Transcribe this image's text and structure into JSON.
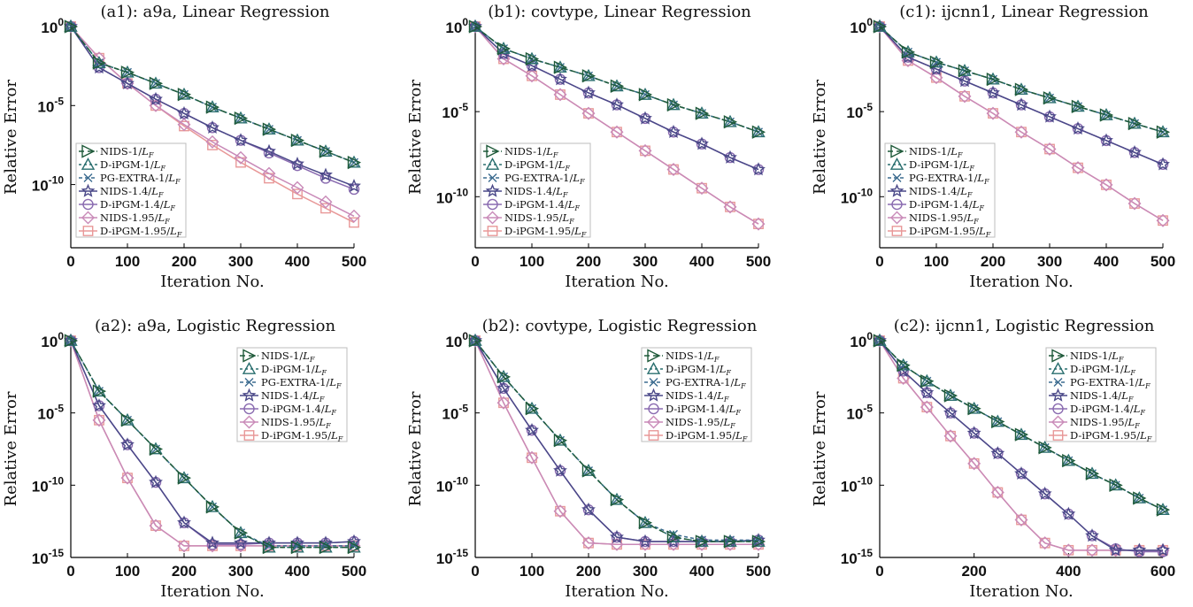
{
  "chart_data": [
    {
      "type": "line",
      "title": "(a1): a9a, Linear Regression",
      "xlabel": "Iteration No.",
      "ylabel": "Relative Error",
      "xlim": [
        0,
        500
      ],
      "xticks": [
        "0",
        "100",
        "200",
        "300",
        "400",
        "500"
      ],
      "ylim_log10": [
        -14,
        0
      ],
      "yticks": [
        {
          "base": "10",
          "exp": "0",
          "log": 0
        },
        {
          "base": "10",
          "exp": "-5",
          "log": -5
        },
        {
          "base": "10",
          "exp": "-10",
          "log": -10
        }
      ],
      "legend_position": "bottom-left",
      "x": [
        0,
        50,
        100,
        150,
        200,
        250,
        300,
        350,
        400,
        450,
        500
      ],
      "series": [
        {
          "name": "NIDS-1/L_F",
          "values": [
            0,
            -2.3,
            -2.9,
            -3.6,
            -4.3,
            -5.1,
            -5.8,
            -6.5,
            -7.2,
            -7.9,
            -8.6
          ]
        },
        {
          "name": "D-iPGM-1/L_F",
          "values": [
            0,
            -2.3,
            -2.9,
            -3.6,
            -4.3,
            -5.1,
            -5.8,
            -6.5,
            -7.2,
            -7.9,
            -8.6
          ]
        },
        {
          "name": "PG-EXTRA-1/L_F",
          "values": [
            0,
            -2.3,
            -2.9,
            -3.6,
            -4.3,
            -5.1,
            -5.8,
            -6.5,
            -7.2,
            -7.9,
            -8.6
          ]
        },
        {
          "name": "NIDS-1.4/L_F",
          "values": [
            0,
            -2.6,
            -3.6,
            -4.6,
            -5.5,
            -6.4,
            -7.2,
            -7.9,
            -8.7,
            -9.4,
            -10.1
          ]
        },
        {
          "name": "D-iPGM-1.4/L_F",
          "values": [
            0,
            -2.6,
            -3.6,
            -4.6,
            -5.5,
            -6.4,
            -7.2,
            -8.0,
            -8.8,
            -9.6,
            -10.3
          ]
        },
        {
          "name": "NIDS-1.95/L_F",
          "values": [
            0,
            -2.0,
            -3.6,
            -5.0,
            -6.2,
            -7.3,
            -8.3,
            -9.3,
            -10.2,
            -11.1,
            -12.0
          ]
        },
        {
          "name": "D-iPGM-1.95/L_F",
          "values": [
            0,
            -2.0,
            -3.6,
            -5.0,
            -6.3,
            -7.5,
            -8.6,
            -9.6,
            -10.6,
            -11.5,
            -12.4
          ]
        }
      ]
    },
    {
      "type": "line",
      "title": "(b1): covtype, Linear Regression",
      "xlabel": "Iteration No.",
      "ylabel": "Relative Error",
      "xlim": [
        0,
        500
      ],
      "xticks": [
        "0",
        "100",
        "200",
        "300",
        "400",
        "500"
      ],
      "ylim_log10": [
        -13,
        0
      ],
      "yticks": [
        {
          "base": "10",
          "exp": "0",
          "log": 0
        },
        {
          "base": "10",
          "exp": "-5",
          "log": -5
        },
        {
          "base": "10",
          "exp": "-10",
          "log": -10
        }
      ],
      "legend_position": "bottom-left",
      "x": [
        0,
        50,
        100,
        150,
        200,
        250,
        300,
        350,
        400,
        450,
        500
      ],
      "series": [
        {
          "name": "NIDS-1/L_F",
          "values": [
            0,
            -1.3,
            -1.9,
            -2.4,
            -2.9,
            -3.5,
            -4.0,
            -4.6,
            -5.1,
            -5.6,
            -6.2
          ]
        },
        {
          "name": "D-iPGM-1/L_F",
          "values": [
            0,
            -1.3,
            -1.9,
            -2.4,
            -2.9,
            -3.5,
            -4.0,
            -4.6,
            -5.1,
            -5.6,
            -6.2
          ]
        },
        {
          "name": "PG-EXTRA-1/L_F",
          "values": [
            0,
            -1.3,
            -1.9,
            -2.4,
            -2.9,
            -3.5,
            -4.0,
            -4.6,
            -5.1,
            -5.6,
            -6.2
          ]
        },
        {
          "name": "NIDS-1.4/L_F",
          "values": [
            0,
            -1.6,
            -2.3,
            -3.1,
            -3.9,
            -4.6,
            -5.4,
            -6.2,
            -6.9,
            -7.7,
            -8.4
          ]
        },
        {
          "name": "D-iPGM-1.4/L_F",
          "values": [
            0,
            -1.6,
            -2.3,
            -3.1,
            -3.9,
            -4.6,
            -5.4,
            -6.2,
            -6.9,
            -7.7,
            -8.4
          ]
        },
        {
          "name": "NIDS-1.95/L_F",
          "values": [
            0,
            -1.9,
            -2.9,
            -4.0,
            -5.1,
            -6.2,
            -7.3,
            -8.4,
            -9.5,
            -10.6,
            -11.6
          ]
        },
        {
          "name": "D-iPGM-1.95/L_F",
          "values": [
            0,
            -1.9,
            -2.9,
            -4.0,
            -5.1,
            -6.2,
            -7.3,
            -8.4,
            -9.5,
            -10.6,
            -11.6
          ]
        }
      ]
    },
    {
      "type": "line",
      "title": "(c1): ijcnn1, Linear Regression",
      "xlabel": "Iteration No.",
      "ylabel": "Relative Error",
      "xlim": [
        0,
        500
      ],
      "xticks": [
        "0",
        "100",
        "200",
        "300",
        "400",
        "500"
      ],
      "ylim_log10": [
        -13,
        0
      ],
      "yticks": [
        {
          "base": "10",
          "exp": "0",
          "log": 0
        },
        {
          "base": "10",
          "exp": "-5",
          "log": -5
        },
        {
          "base": "10",
          "exp": "-10",
          "log": -10
        }
      ],
      "legend_position": "bottom-left",
      "x": [
        0,
        50,
        100,
        150,
        200,
        250,
        300,
        350,
        400,
        450,
        500
      ],
      "series": [
        {
          "name": "NIDS-1/L_F",
          "values": [
            0,
            -1.5,
            -2.1,
            -2.6,
            -3.1,
            -3.7,
            -4.2,
            -4.7,
            -5.2,
            -5.7,
            -6.2
          ]
        },
        {
          "name": "D-iPGM-1/L_F",
          "values": [
            0,
            -1.5,
            -2.1,
            -2.6,
            -3.1,
            -3.7,
            -4.2,
            -4.7,
            -5.2,
            -5.7,
            -6.2
          ]
        },
        {
          "name": "PG-EXTRA-1/L_F",
          "values": [
            0,
            -1.5,
            -2.1,
            -2.6,
            -3.1,
            -3.7,
            -4.2,
            -4.7,
            -5.2,
            -5.7,
            -6.2
          ]
        },
        {
          "name": "NIDS-1.4/L_F",
          "values": [
            0,
            -1.8,
            -2.5,
            -3.2,
            -3.9,
            -4.6,
            -5.3,
            -6.0,
            -6.7,
            -7.4,
            -8.1
          ]
        },
        {
          "name": "D-iPGM-1.4/L_F",
          "values": [
            0,
            -1.8,
            -2.5,
            -3.2,
            -3.9,
            -4.6,
            -5.3,
            -6.0,
            -6.7,
            -7.4,
            -8.1
          ]
        },
        {
          "name": "NIDS-1.95/L_F",
          "values": [
            0,
            -2.0,
            -3.0,
            -4.1,
            -5.1,
            -6.2,
            -7.2,
            -8.3,
            -9.3,
            -10.4,
            -11.4
          ]
        },
        {
          "name": "D-iPGM-1.95/L_F",
          "values": [
            0,
            -2.0,
            -3.0,
            -4.1,
            -5.1,
            -6.2,
            -7.2,
            -8.3,
            -9.3,
            -10.4,
            -11.4
          ]
        }
      ]
    },
    {
      "type": "line",
      "title": "(a2): a9a, Logistic Regression",
      "xlabel": "Iteration No.",
      "ylabel": "Relative Error",
      "xlim": [
        0,
        500
      ],
      "xticks": [
        "0",
        "100",
        "200",
        "300",
        "400",
        "500"
      ],
      "ylim_log10": [
        -15,
        0
      ],
      "yticks": [
        {
          "base": "10",
          "exp": "0",
          "log": 0
        },
        {
          "base": "10",
          "exp": "-5",
          "log": -5
        },
        {
          "base": "10",
          "exp": "-10",
          "log": -10
        },
        {
          "base": "10",
          "exp": "-15",
          "log": -15
        }
      ],
      "legend_position": "top-right",
      "x": [
        0,
        50,
        100,
        150,
        200,
        250,
        300,
        350,
        400,
        450,
        500
      ],
      "series": [
        {
          "name": "NIDS-1/L_F",
          "values": [
            0,
            -3.5,
            -5.5,
            -7.5,
            -9.5,
            -11.5,
            -13.3,
            -14.3,
            -14.3,
            -14.3,
            -14.3
          ]
        },
        {
          "name": "D-iPGM-1/L_F",
          "values": [
            0,
            -3.5,
            -5.5,
            -7.5,
            -9.5,
            -11.5,
            -13.3,
            -14.3,
            -14.3,
            -14.3,
            -14.3
          ]
        },
        {
          "name": "PG-EXTRA-1/L_F",
          "values": [
            0,
            -3.5,
            -5.5,
            -7.5,
            -9.5,
            -11.5,
            -13.3,
            -14.2,
            -14.2,
            -14.2,
            -14.2
          ]
        },
        {
          "name": "NIDS-1.4/L_F",
          "values": [
            0,
            -4.5,
            -7.2,
            -9.8,
            -12.6,
            -14.0,
            -14.0,
            -14.0,
            -14.0,
            -14.0,
            -13.9
          ]
        },
        {
          "name": "D-iPGM-1.4/L_F",
          "values": [
            0,
            -4.5,
            -7.2,
            -9.8,
            -12.6,
            -14.1,
            -14.1,
            -14.0,
            -14.0,
            -14.0,
            -13.9
          ]
        },
        {
          "name": "NIDS-1.95/L_F",
          "values": [
            0,
            -5.5,
            -9.5,
            -12.8,
            -14.2,
            -14.2,
            -14.2,
            -14.2,
            -14.2,
            -14.2,
            -14.2
          ]
        },
        {
          "name": "D-iPGM-1.95/L_F",
          "values": [
            0,
            -5.5,
            -9.5,
            -12.8,
            -14.2,
            -14.2,
            -14.2,
            -14.2,
            -14.2,
            -14.2,
            -14.2
          ]
        }
      ]
    },
    {
      "type": "line",
      "title": "(b2): covtype, Logistic Regression",
      "xlabel": "Iteration No.",
      "ylabel": "Relative Error",
      "xlim": [
        0,
        500
      ],
      "xticks": [
        "0",
        "100",
        "200",
        "300",
        "400",
        "500"
      ],
      "ylim_log10": [
        -15,
        0
      ],
      "yticks": [
        {
          "base": "10",
          "exp": "0",
          "log": 0
        },
        {
          "base": "10",
          "exp": "-5",
          "log": -5
        },
        {
          "base": "10",
          "exp": "-10",
          "log": -10
        },
        {
          "base": "10",
          "exp": "-15",
          "log": -15
        }
      ],
      "legend_position": "top-right",
      "x": [
        0,
        50,
        100,
        150,
        200,
        250,
        300,
        350,
        400,
        450,
        500
      ],
      "series": [
        {
          "name": "NIDS-1/L_F",
          "values": [
            0,
            -2.5,
            -4.7,
            -6.9,
            -9.0,
            -11.0,
            -12.6,
            -13.6,
            -13.9,
            -13.9,
            -13.9
          ]
        },
        {
          "name": "D-iPGM-1/L_F",
          "values": [
            0,
            -2.5,
            -4.7,
            -6.9,
            -9.0,
            -11.0,
            -12.6,
            -13.6,
            -13.9,
            -13.9,
            -13.9
          ]
        },
        {
          "name": "PG-EXTRA-1/L_F",
          "values": [
            0,
            -2.5,
            -4.7,
            -6.9,
            -9.0,
            -11.0,
            -12.6,
            -13.4,
            -13.8,
            -13.8,
            -13.8
          ]
        },
        {
          "name": "NIDS-1.4/L_F",
          "values": [
            0,
            -3.3,
            -6.2,
            -9.0,
            -11.7,
            -13.6,
            -13.9,
            -13.9,
            -13.9,
            -13.9,
            -13.8
          ]
        },
        {
          "name": "D-iPGM-1.4/L_F",
          "values": [
            0,
            -3.3,
            -6.2,
            -9.0,
            -11.7,
            -13.6,
            -13.9,
            -13.9,
            -13.9,
            -13.9,
            -13.8
          ]
        },
        {
          "name": "NIDS-1.95/L_F",
          "values": [
            0,
            -4.3,
            -8.1,
            -11.8,
            -14.0,
            -14.1,
            -14.1,
            -14.1,
            -14.1,
            -14.1,
            -14.1
          ]
        },
        {
          "name": "D-iPGM-1.95/L_F",
          "values": [
            0,
            -4.3,
            -8.1,
            -11.8,
            -14.0,
            -14.1,
            -14.1,
            -14.1,
            -14.1,
            -14.1,
            -14.1
          ]
        }
      ]
    },
    {
      "type": "line",
      "title": "(c2): ijcnn1, Logistic Regression",
      "xlabel": "Iteration No.",
      "ylabel": "Relative Error",
      "xlim": [
        0,
        600
      ],
      "xticks": [
        "0",
        "200",
        "400",
        "600"
      ],
      "ylim_log10": [
        -15,
        0
      ],
      "yticks": [
        {
          "base": "10",
          "exp": "0",
          "log": 0
        },
        {
          "base": "10",
          "exp": "-5",
          "log": -5
        },
        {
          "base": "10",
          "exp": "-10",
          "log": -10
        },
        {
          "base": "10",
          "exp": "-15",
          "log": -15
        }
      ],
      "legend_position": "top-right",
      "x": [
        0,
        50,
        100,
        150,
        200,
        250,
        300,
        350,
        400,
        450,
        500,
        550,
        600
      ],
      "series": [
        {
          "name": "NIDS-1/L_F",
          "values": [
            0,
            -1.7,
            -2.8,
            -3.8,
            -4.7,
            -5.6,
            -6.5,
            -7.4,
            -8.3,
            -9.2,
            -10.0,
            -10.9,
            -11.7
          ]
        },
        {
          "name": "D-iPGM-1/L_F",
          "values": [
            0,
            -1.7,
            -2.8,
            -3.8,
            -4.7,
            -5.6,
            -6.5,
            -7.4,
            -8.3,
            -9.2,
            -10.0,
            -10.9,
            -11.7
          ]
        },
        {
          "name": "PG-EXTRA-1/L_F",
          "values": [
            0,
            -1.7,
            -2.8,
            -3.8,
            -4.7,
            -5.6,
            -6.5,
            -7.4,
            -8.3,
            -9.2,
            -10.0,
            -10.9,
            -11.7
          ]
        },
        {
          "name": "NIDS-1.4/L_F",
          "values": [
            0,
            -2.1,
            -3.6,
            -5.0,
            -6.4,
            -7.8,
            -9.2,
            -10.6,
            -12.0,
            -13.5,
            -14.5,
            -14.5,
            -14.5
          ]
        },
        {
          "name": "D-iPGM-1.4/L_F",
          "values": [
            0,
            -2.1,
            -3.6,
            -5.0,
            -6.4,
            -7.8,
            -9.2,
            -10.6,
            -12.0,
            -13.5,
            -14.4,
            -14.6,
            -14.6
          ]
        },
        {
          "name": "NIDS-1.95/L_F",
          "values": [
            0,
            -2.6,
            -4.6,
            -6.6,
            -8.5,
            -10.5,
            -12.4,
            -14.0,
            -14.5,
            -14.5,
            -14.5,
            -14.5,
            -14.5
          ]
        },
        {
          "name": "D-iPGM-1.95/L_F",
          "values": [
            0,
            -2.6,
            -4.6,
            -6.6,
            -8.5,
            -10.5,
            -12.4,
            -14.0,
            -14.5,
            -14.5,
            -14.5,
            -14.5,
            -14.5
          ]
        }
      ]
    }
  ],
  "legend": {
    "labels": [
      "NIDS-1/",
      "D-iPGM-1/",
      "PG-EXTRA-1/",
      "NIDS-1.4/",
      "D-iPGM-1.4/",
      "NIDS-1.95/",
      "D-iPGM-1.95/"
    ],
    "denominator": "L",
    "denominator_sub": "F"
  },
  "styles": [
    {
      "color": "#1f5a3a",
      "dash": "6,4",
      "marker": "triangle-right"
    },
    {
      "color": "#2a6f6f",
      "dash": "3,3",
      "marker": "triangle-up"
    },
    {
      "color": "#3b6b8f",
      "dash": "4,3",
      "marker": "x"
    },
    {
      "color": "#4a4888",
      "dash": "",
      "marker": "star"
    },
    {
      "color": "#8a6bb0",
      "dash": "",
      "marker": "circle"
    },
    {
      "color": "#c98ab8",
      "dash": "",
      "marker": "diamond"
    },
    {
      "color": "#e89898",
      "dash": "",
      "marker": "square"
    }
  ]
}
